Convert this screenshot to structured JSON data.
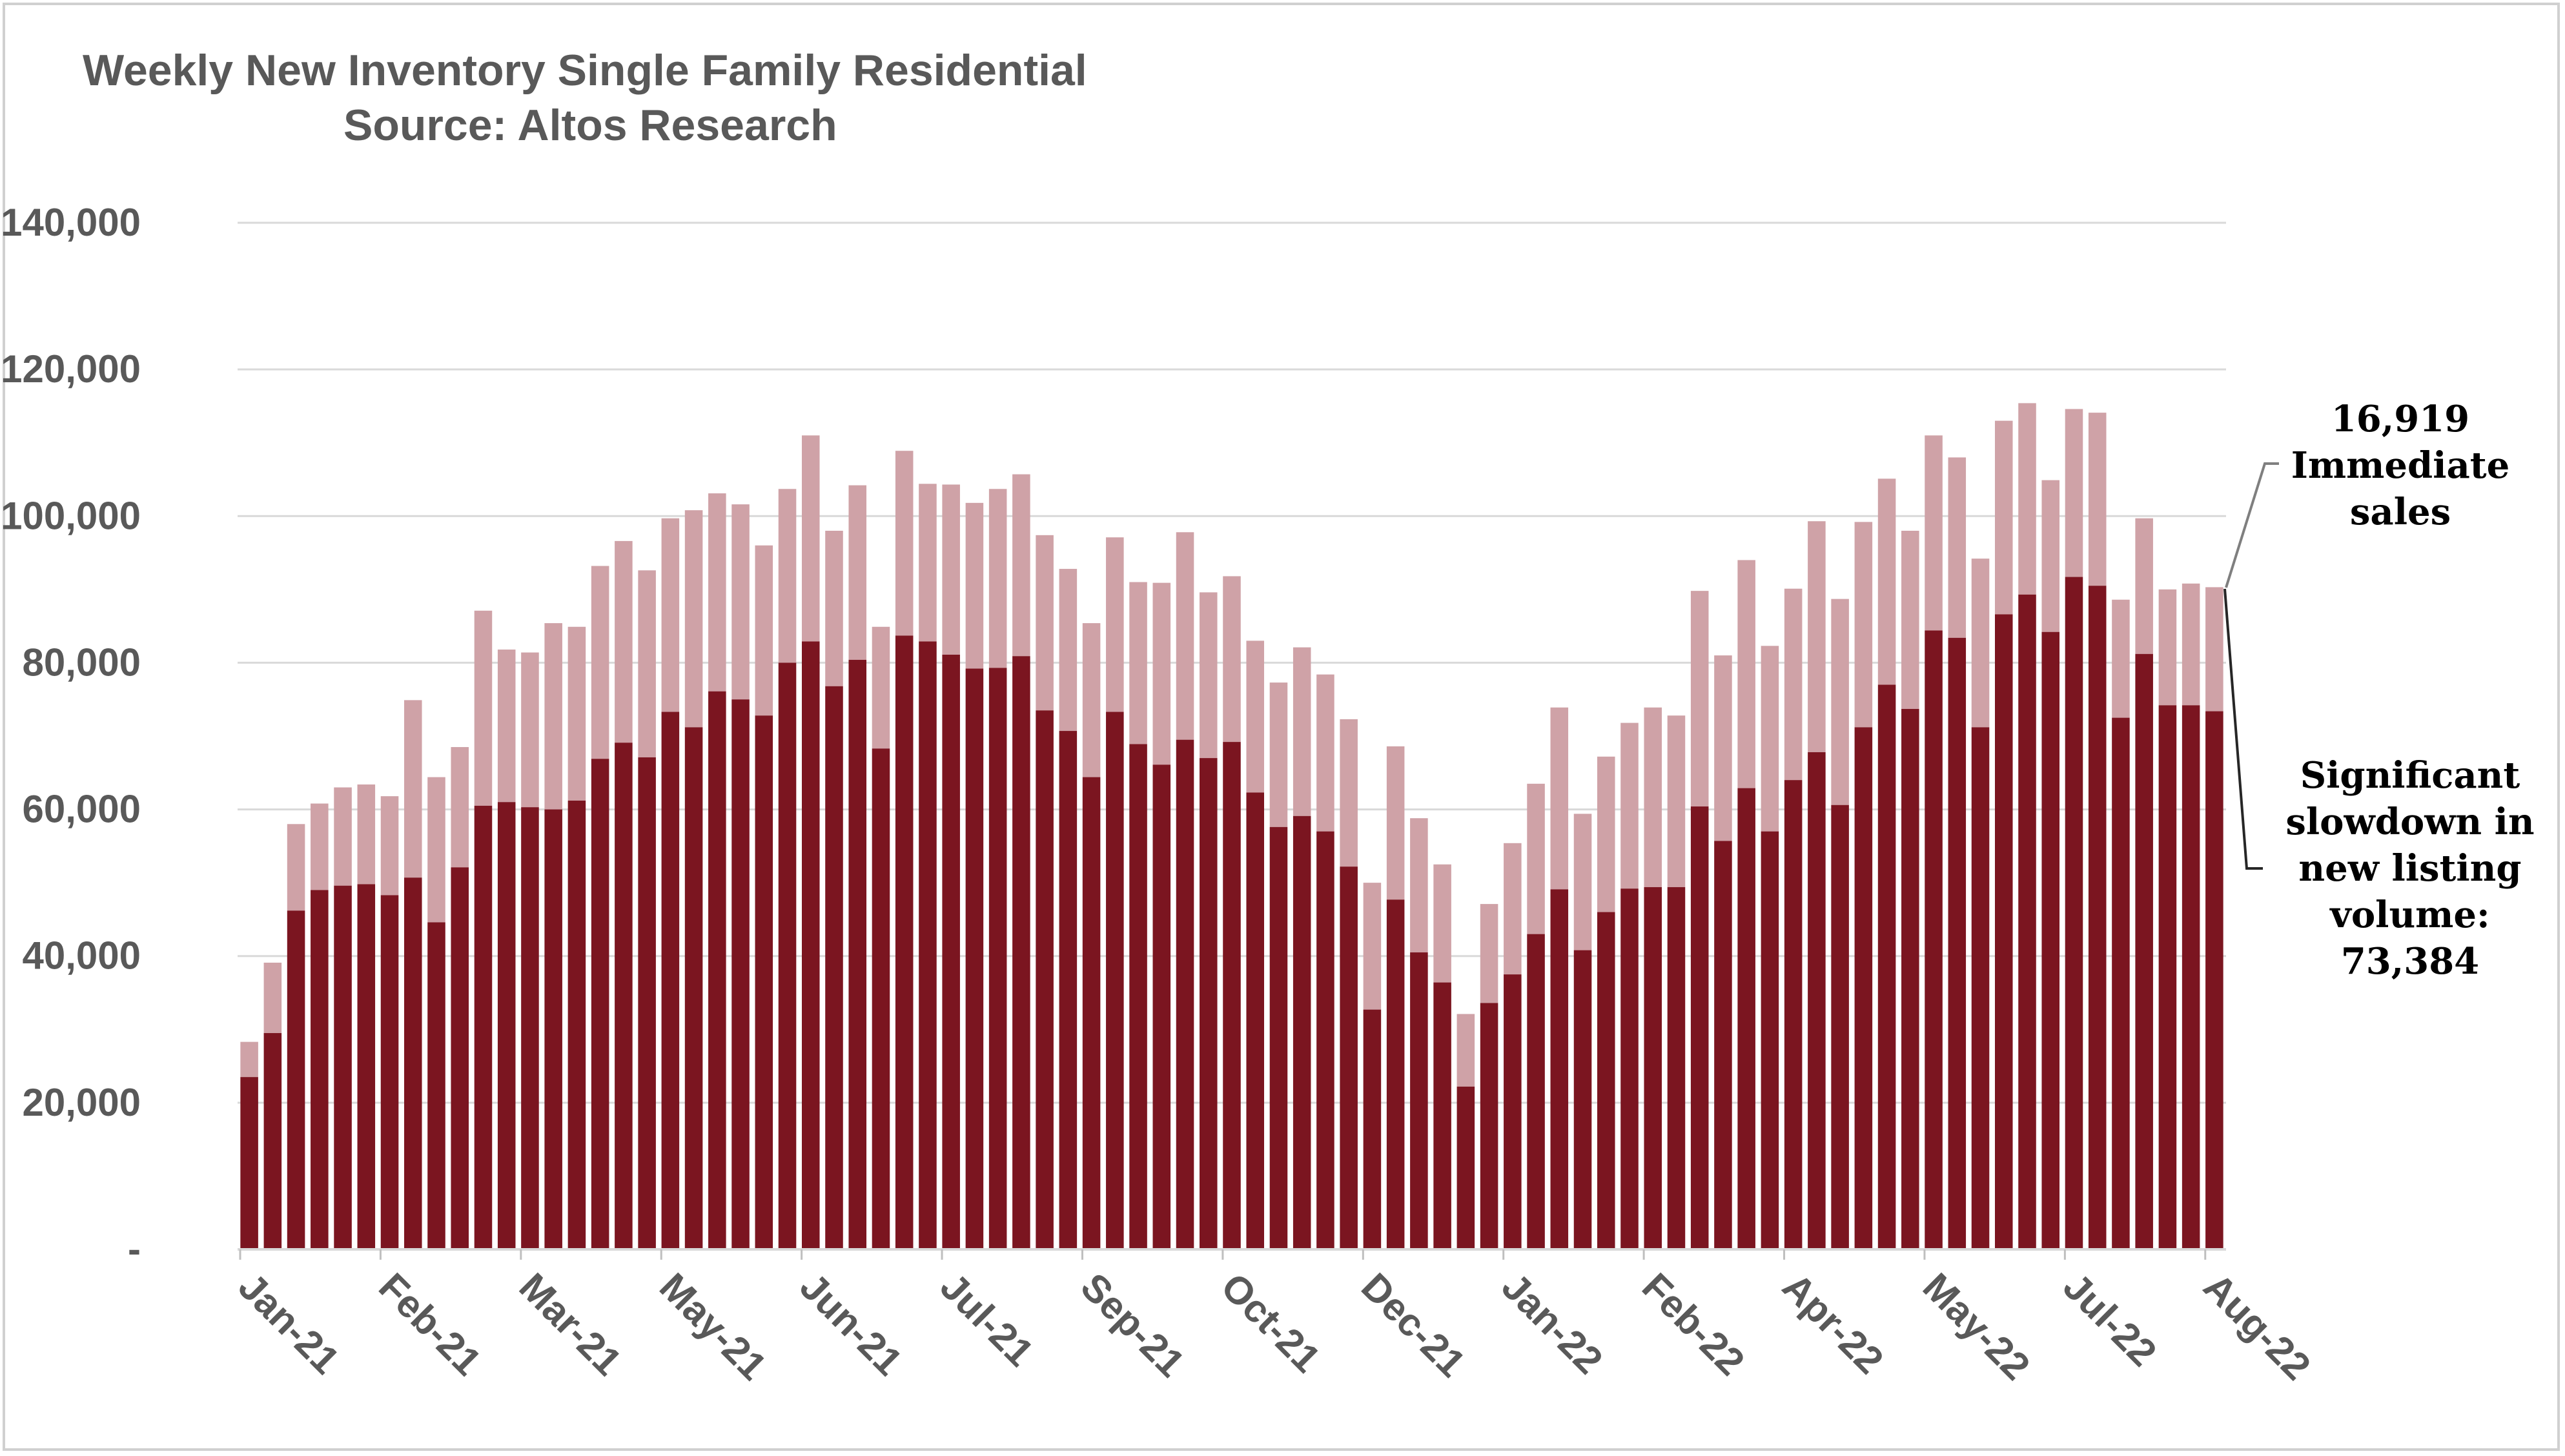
{
  "colors": {
    "new_listings": "#7b1520",
    "immediate_sales": "#cfa2a7",
    "grid": "#d9d9d9",
    "text": "#595959"
  },
  "chart_data": {
    "type": "bar",
    "stacked": true,
    "title": "Weekly New Inventory Single Family Residential",
    "subtitle": "Source: Altos Research",
    "ylim": [
      0,
      140000
    ],
    "y_ticks": [
      {
        "value": 0,
        "label": "-"
      },
      {
        "value": 20000,
        "label": "20,000"
      },
      {
        "value": 40000,
        "label": "40,000"
      },
      {
        "value": 60000,
        "label": "60,000"
      },
      {
        "value": 80000,
        "label": "80,000"
      },
      {
        "value": 100000,
        "label": "100,000"
      },
      {
        "value": 120000,
        "label": "120,000"
      },
      {
        "value": 140000,
        "label": "140,000"
      }
    ],
    "x_ticks": [
      {
        "index": 0,
        "label": "Jan-21"
      },
      {
        "index": 6,
        "label": "Feb-21"
      },
      {
        "index": 12,
        "label": "Mar-21"
      },
      {
        "index": 18,
        "label": "May-21"
      },
      {
        "index": 24,
        "label": "Jun-21"
      },
      {
        "index": 30,
        "label": "Jul-21"
      },
      {
        "index": 36,
        "label": "Sep-21"
      },
      {
        "index": 42,
        "label": "Oct-21"
      },
      {
        "index": 48,
        "label": "Dec-21"
      },
      {
        "index": 54,
        "label": "Jan-22"
      },
      {
        "index": 60,
        "label": "Feb-22"
      },
      {
        "index": 66,
        "label": "Apr-22"
      },
      {
        "index": 72,
        "label": "May-22"
      },
      {
        "index": 78,
        "label": "Jul-22"
      },
      {
        "index": 84,
        "label": "Aug-22"
      }
    ],
    "grid": true,
    "legend": "none",
    "series": [
      {
        "values": [
          23500,
          29500,
          46200,
          49000,
          49600,
          49800,
          48300,
          50700,
          44600,
          52100,
          60500,
          61000,
          60300,
          60000,
          61200,
          66900,
          69100,
          67100,
          73300,
          71200,
          76100,
          75000,
          72800,
          80000,
          82900,
          76800,
          80400,
          68300,
          83700,
          82900,
          81100,
          79200,
          79300,
          80900,
          73500,
          70700,
          64400,
          73300,
          68900,
          66100,
          69500,
          67000,
          69200,
          62300,
          57600,
          59100,
          57000,
          52200,
          32700,
          47700,
          40500,
          36400,
          22200,
          33600,
          37500,
          43000,
          49100,
          40800,
          46000,
          49200,
          49400,
          49400,
          60400,
          55700,
          62900,
          57000,
          64000,
          67800,
          60600,
          71200,
          77000,
          73700,
          84400,
          83400,
          71200,
          86600,
          89300,
          84200,
          91700,
          90500,
          72500,
          81200,
          74200,
          74200,
          73384
        ]
      },
      {
        "values": [
          4800,
          9600,
          11800,
          11800,
          13400,
          13600,
          13500,
          24200,
          19800,
          16400,
          26600,
          20800,
          21100,
          25400,
          23700,
          26300,
          27500,
          25500,
          26400,
          29600,
          27000,
          26600,
          23200,
          23700,
          28100,
          21200,
          23800,
          16600,
          25200,
          21500,
          23200,
          22600,
          24400,
          24800,
          23900,
          22100,
          21000,
          23800,
          22100,
          24800,
          28300,
          22600,
          22600,
          20700,
          19700,
          23000,
          21400,
          20100,
          17300,
          20900,
          18300,
          16100,
          9900,
          13500,
          17900,
          20500,
          24800,
          18600,
          21200,
          22600,
          24500,
          23400,
          29400,
          25300,
          31100,
          25300,
          26100,
          31500,
          28100,
          28000,
          28100,
          24300,
          26600,
          24600,
          23000,
          26400,
          26100,
          20700,
          22900,
          23600,
          16100,
          18500,
          15800,
          16600,
          16919
        ]
      }
    ],
    "annotations": [
      {
        "lines": [
          "16,919",
          "Immediate",
          "sales"
        ]
      },
      {
        "lines": [
          "Significant",
          "slowdown in",
          "new listing",
          "volume:",
          "73,384"
        ]
      }
    ]
  }
}
